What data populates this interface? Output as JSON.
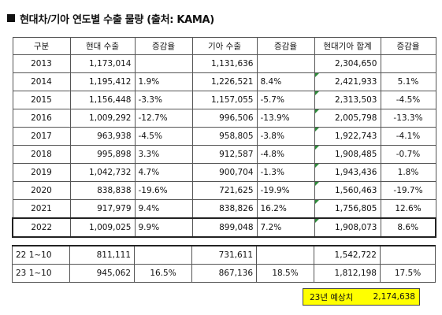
{
  "title": "현대차/기아 연도별 수출 물량 (출처: KAMA)",
  "headers": [
    "구분",
    "현대 수출",
    "증감율",
    "기아 수출",
    "증감율",
    "현대기아 합계",
    "증감율"
  ],
  "rows": [
    {
      "year": "2013",
      "hyundai": "1,173,014",
      "h_chg": "",
      "kia": "1,131,636",
      "k_chg": "",
      "total": "2,304,650",
      "t_chg": ""
    },
    {
      "year": "2014",
      "hyundai": "1,195,412",
      "h_chg": "1.9%",
      "kia": "1,226,521",
      "k_chg": "8.4%",
      "total": "2,421,933",
      "t_chg": "5.1%"
    },
    {
      "year": "2015",
      "hyundai": "1,156,448",
      "h_chg": "-3.3%",
      "kia": "1,157,055",
      "k_chg": "-5.7%",
      "total": "2,313,503",
      "t_chg": "-4.5%"
    },
    {
      "year": "2016",
      "hyundai": "1,009,292",
      "h_chg": "-12.7%",
      "kia": "996,506",
      "k_chg": "-13.9%",
      "total": "2,005,798",
      "t_chg": "-13.3%"
    },
    {
      "year": "2017",
      "hyundai": "963,938",
      "h_chg": "-4.5%",
      "kia": "958,805",
      "k_chg": "-3.8%",
      "total": "1,922,743",
      "t_chg": "-4.1%"
    },
    {
      "year": "2018",
      "hyundai": "995,898",
      "h_chg": "3.3%",
      "kia": "912,587",
      "k_chg": "-4.8%",
      "total": "1,908,485",
      "t_chg": "-0.7%"
    },
    {
      "year": "2019",
      "hyundai": "1,042,732",
      "h_chg": "4.7%",
      "kia": "900,704",
      "k_chg": "-1.3%",
      "total": "1,943,436",
      "t_chg": "1.8%"
    },
    {
      "year": "2020",
      "hyundai": "838,838",
      "h_chg": "-19.6%",
      "kia": "721,625",
      "k_chg": "-19.9%",
      "total": "1,560,463",
      "t_chg": "-19.7%"
    },
    {
      "year": "2021",
      "hyundai": "917,979",
      "h_chg": "9.4%",
      "kia": "838,826",
      "k_chg": "16.2%",
      "total": "1,756,805",
      "t_chg": "12.6%"
    },
    {
      "year": "2022",
      "hyundai": "1,009,025",
      "h_chg": "9.9%",
      "kia": "899,048",
      "k_chg": "7.2%",
      "total": "1,908,073",
      "t_chg": "8.6%"
    }
  ],
  "ytd": [
    {
      "label": "22 1~10",
      "hyundai": "811,111",
      "h_chg": "",
      "kia": "731,611",
      "k_chg": "",
      "total": "1,542,722",
      "t_chg": ""
    },
    {
      "label": "23 1~10",
      "hyundai": "945,062",
      "h_chg": "16.5%",
      "kia": "867,136",
      "k_chg": "18.5%",
      "total": "1,812,198",
      "t_chg": "17.5%"
    }
  ],
  "forecast": {
    "label": "23년 예상치",
    "value": "2,174,638"
  },
  "colors": {
    "forecast_bg": "#ffff00",
    "error_flag": "#2e8b3a"
  }
}
